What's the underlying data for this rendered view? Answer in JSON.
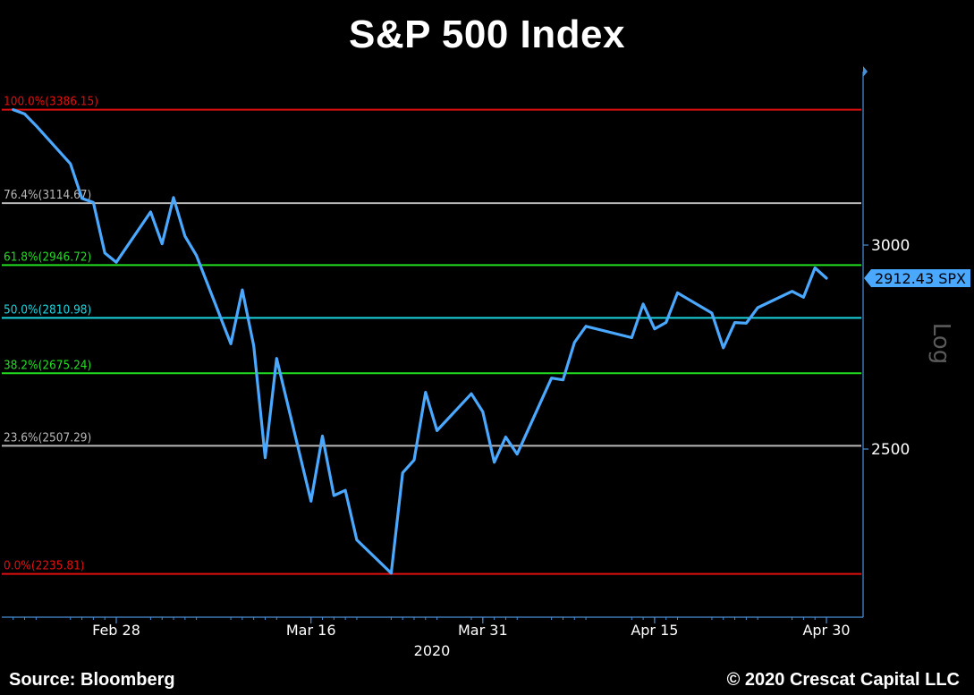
{
  "chart_data": {
    "type": "line",
    "title": "S&P 500 Index",
    "scale": "log",
    "ylim": [
      2150,
      3500
    ],
    "y_ticks": [
      {
        "value": 3000,
        "label": "3000"
      },
      {
        "value": 2500,
        "label": "2500"
      }
    ],
    "x_ticks": [
      "Feb 28",
      "Mar 16",
      "Mar 31",
      "Apr 15",
      "Apr 30"
    ],
    "x_year_label": "2020",
    "axis_label_right": "Log",
    "last_value_label": "2912.43 SPX",
    "colors": {
      "line": "#4aa8ff",
      "axis": "#4a90d9",
      "background": "#000000"
    },
    "fib_levels": [
      {
        "label": "100.0%(3386.15)",
        "value": 3386.15,
        "color": "#e01010"
      },
      {
        "label": "76.4%(3114.67)",
        "value": 3114.67,
        "color": "#b8b8b8"
      },
      {
        "label": "61.8%(2946.72)",
        "value": 2946.72,
        "color": "#22dd22"
      },
      {
        "label": "50.0%(2810.98)",
        "value": 2810.98,
        "color": "#19d6e0"
      },
      {
        "label": "38.2%(2675.24)",
        "value": 2675.24,
        "color": "#22dd22"
      },
      {
        "label": "23.6%(2507.29)",
        "value": 2507.29,
        "color": "#b8b8b8"
      },
      {
        "label": "0.0%(2235.81)",
        "value": 2235.81,
        "color": "#e01010"
      }
    ],
    "series": [
      {
        "x": [
          "2020-02-19",
          "2020-02-20",
          "2020-02-21",
          "2020-02-24",
          "2020-02-25",
          "2020-02-26",
          "2020-02-27",
          "2020-02-28",
          "2020-03-02",
          "2020-03-03",
          "2020-03-04",
          "2020-03-05",
          "2020-03-06",
          "2020-03-09",
          "2020-03-10",
          "2020-03-11",
          "2020-03-12",
          "2020-03-13",
          "2020-03-16",
          "2020-03-17",
          "2020-03-18",
          "2020-03-19",
          "2020-03-20",
          "2020-03-23",
          "2020-03-24",
          "2020-03-25",
          "2020-03-26",
          "2020-03-27",
          "2020-03-30",
          "2020-03-31",
          "2020-04-01",
          "2020-04-02",
          "2020-04-03",
          "2020-04-06",
          "2020-04-07",
          "2020-04-08",
          "2020-04-09",
          "2020-04-13",
          "2020-04-14",
          "2020-04-15",
          "2020-04-16",
          "2020-04-17",
          "2020-04-20",
          "2020-04-21",
          "2020-04-22",
          "2020-04-23",
          "2020-04-24",
          "2020-04-27",
          "2020-04-28",
          "2020-04-29",
          "2020-04-30"
        ],
        "values": [
          3386.15,
          3373.23,
          3337.75,
          3225.89,
          3128.21,
          3116.39,
          2978.76,
          2954.22,
          3090.23,
          3003.37,
          3130.12,
          3023.94,
          2972.37,
          2746.56,
          2882.23,
          2741.38,
          2480.64,
          2711.02,
          2386.13,
          2529.19,
          2398.1,
          2409.39,
          2304.92,
          2237.4,
          2447.33,
          2475.56,
          2630.07,
          2541.47,
          2626.65,
          2584.59,
          2470.5,
          2526.9,
          2488.65,
          2663.68,
          2659.41,
          2749.98,
          2789.82,
          2761.63,
          2846.06,
          2783.36,
          2799.55,
          2874.56,
          2823.16,
          2736.56,
          2799.31,
          2797.8,
          2836.74,
          2878.48,
          2863.39,
          2939.51,
          2912.43
        ]
      }
    ]
  },
  "footer": {
    "source": "Source: Bloomberg",
    "copyright": "© 2020 Crescat Capital LLC"
  }
}
